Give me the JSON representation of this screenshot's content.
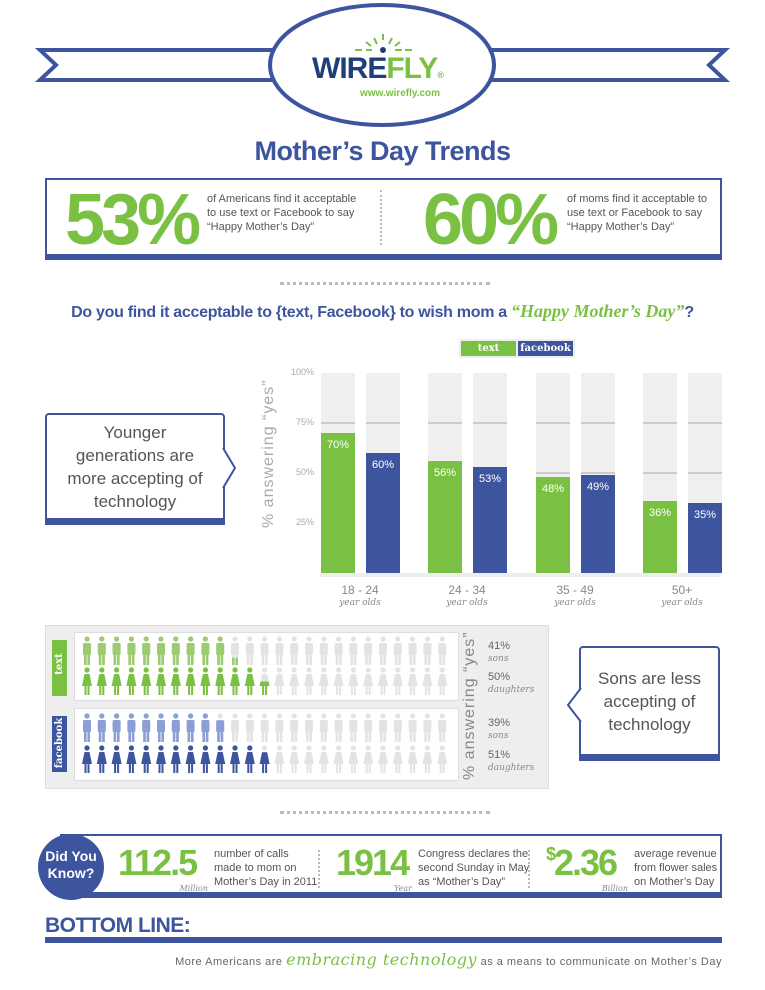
{
  "header": {
    "logo_text": "WIREFLY",
    "logo_mark": "®",
    "url": "www.wirefly.com",
    "title": "Mother’s Day Trends"
  },
  "stats": [
    {
      "value": "53%",
      "desc": [
        "of Americans find it acceptable",
        "to use text or Facebook to say",
        "“Happy Mother’s Day”"
      ]
    },
    {
      "value": "60%",
      "desc": [
        "of moms find it acceptable to",
        "use text or Facebook to say",
        "“Happy Mother’s Day”"
      ]
    }
  ],
  "question": {
    "prefix": "Do you find it acceptable to {text, Facebook} to wish mom a ",
    "highlight": "“Happy Mother’s Day”",
    "suffix": "?"
  },
  "callout_left": "Younger generations are more accepting of technology",
  "callout_right": "Sons are less accepting of technology",
  "colors": {
    "blue": "#3d559e",
    "green": "#7ac143",
    "light_green": "#9ccc6f",
    "light_blue": "#8b9fd6",
    "gray": "#e0e0e0"
  },
  "chart_data": {
    "type": "bar",
    "title": "Do you find it acceptable to {text, Facebook} to wish mom a “Happy Mother’s Day”?",
    "ylabel": "% answering “yes”",
    "ylim": [
      0,
      100
    ],
    "yticks": [
      "100%",
      "75%",
      "50%",
      "25%"
    ],
    "categories": [
      "18 - 24",
      "24 - 34",
      "35 - 49",
      "50+"
    ],
    "category_sub": "year olds",
    "legend": [
      "text",
      "facebook"
    ],
    "legend_position": "top",
    "series": [
      {
        "name": "text",
        "values": [
          70,
          56,
          48,
          36
        ],
        "labels": [
          "70%",
          "56%",
          "48%",
          "36%"
        ]
      },
      {
        "name": "facebook",
        "values": [
          60,
          53,
          49,
          35
        ],
        "labels": [
          "60%",
          "53%",
          "49%",
          "35%"
        ]
      }
    ]
  },
  "gender_chart": {
    "ylabel": "% answering “yes”",
    "icons_per_row": 25,
    "groups": [
      {
        "label": "text",
        "rows": [
          {
            "gender": "sons",
            "pct": 41,
            "label": "41%"
          },
          {
            "gender": "daughters",
            "pct": 50,
            "label": "50%"
          }
        ]
      },
      {
        "label": "facebook",
        "rows": [
          {
            "gender": "sons",
            "pct": 39,
            "label": "39%"
          },
          {
            "gender": "daughters",
            "pct": 51,
            "label": "51%"
          }
        ]
      }
    ]
  },
  "did_you_know": {
    "badge": [
      "Did You",
      "Know?"
    ],
    "facts": [
      {
        "value": "112.5",
        "unit": "Million",
        "desc": [
          "number of calls",
          "made to mom on",
          "Mother’s Day in 2011"
        ]
      },
      {
        "value": "1914",
        "unit": "Year",
        "desc": [
          "Congress declares the",
          "second Sunday in May",
          "as “Mother’s Day”"
        ]
      },
      {
        "prefix": "$",
        "value": "2.36",
        "unit": "Billion",
        "desc": [
          "average revenue",
          "from flower sales",
          "on Mother’s Day"
        ]
      }
    ]
  },
  "bottom_line": {
    "heading": "BOTTOM LINE:",
    "pre": "More Americans are ",
    "highlight": "embracing technology",
    "post": " as a means to communicate on Mother’s Day"
  }
}
